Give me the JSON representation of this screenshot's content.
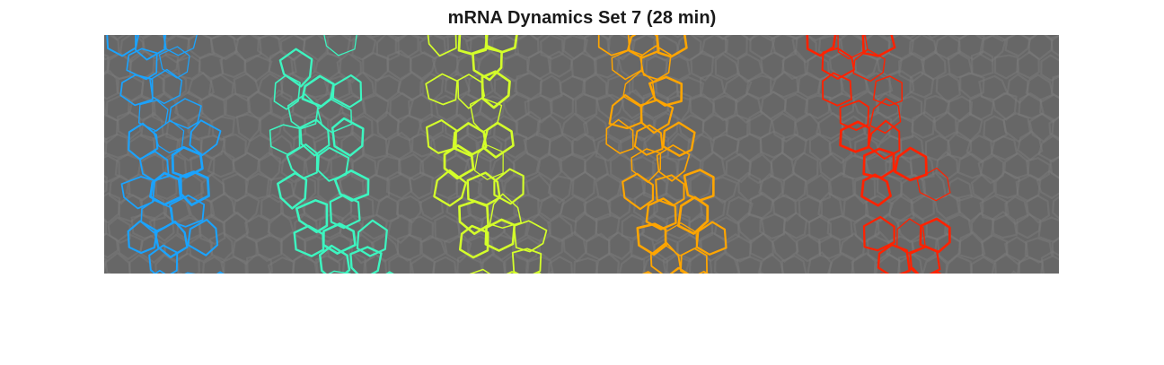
{
  "figure": {
    "title": "mRNA Dynamics Set 7 (28 min)"
  },
  "image": {
    "background_color": "#676767",
    "background_edge_color": "#7a7a7a",
    "bands": [
      {
        "name": "blue",
        "color": "#1aa3ff"
      },
      {
        "name": "aqua",
        "color": "#3df5c0"
      },
      {
        "name": "lime",
        "color": "#d4ff2a"
      },
      {
        "name": "orange",
        "color": "#ffa500"
      },
      {
        "name": "red",
        "color": "#ff2200"
      }
    ]
  }
}
